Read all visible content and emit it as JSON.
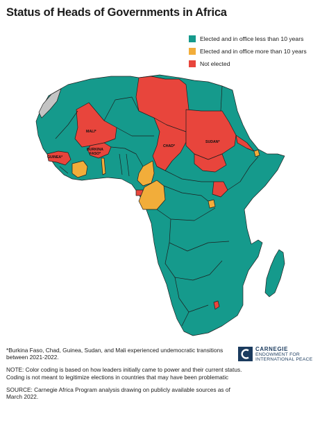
{
  "title": "Status of Heads of Governments in Africa",
  "colors": {
    "teal": "#159a8c",
    "orange": "#f2ad3a",
    "red": "#e8453c",
    "gray": "#c4c4c4",
    "border": "#1e1e1e"
  },
  "legend": [
    {
      "label": "Elected and in office less than 10 years",
      "color": "#159a8c"
    },
    {
      "label": "Elected and in office more than 10 years",
      "color": "#f2ad3a"
    },
    {
      "label": "Not elected",
      "color": "#e8453c"
    }
  ],
  "map_labels": {
    "mali": "MALI*",
    "chad": "CHAD*",
    "sudan": "SUDAN*",
    "burkina_line1": "BURKINA",
    "burkina_line2": "FASO*",
    "guinea": "GUINEA*"
  },
  "notes": {
    "footnote": "*Burkina Faso, Chad, Guinea, Sudan, and Mali experienced undemocratic transitions between 2021-2022.",
    "note": "NOTE: Color coding is based on how leaders initially came to power and their current status. Coding is not meant to legitimize elections in countries that may have been problematic",
    "source": "SOURCE: Carnegie Africa Program analysis drawing on publicly available sources as of March 2022."
  },
  "logo": {
    "line1": "CARNEGIE",
    "line2": "ENDOWMENT FOR",
    "line3": "INTERNATIONAL PEACE"
  }
}
